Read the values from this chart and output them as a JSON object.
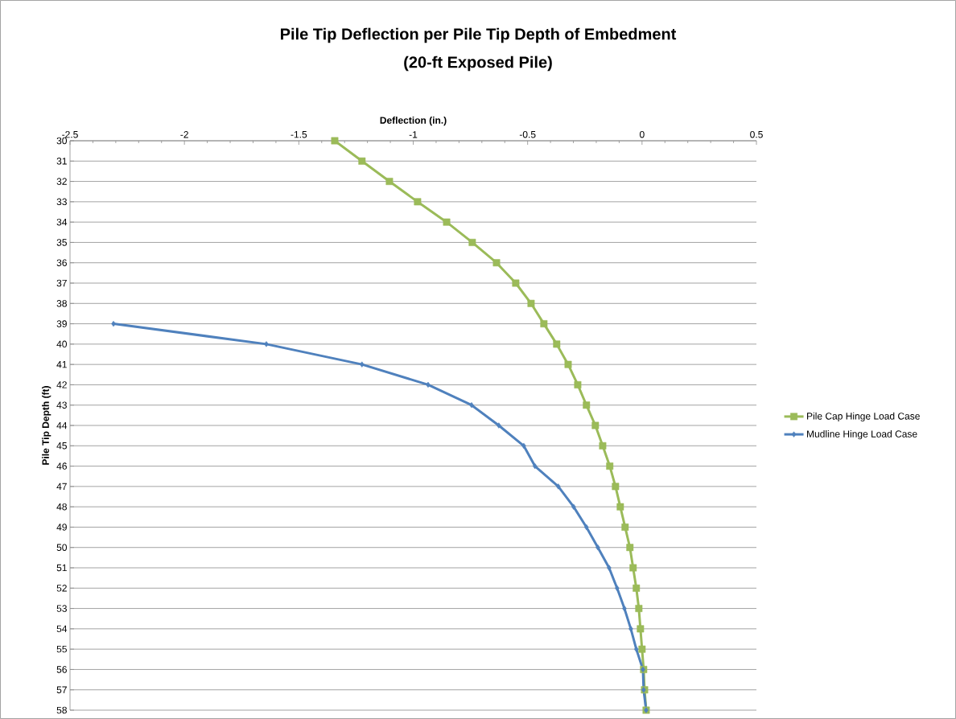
{
  "chart_data": {
    "type": "line",
    "title": "Pile Tip Deflection per Pile Tip Depth of Embedment",
    "subtitle": "(20-ft Exposed Pile)",
    "xlabel": "Deflection (in.)",
    "ylabel": "Pile Tip Depth (ft)",
    "xlim": [
      -2.5,
      0.5
    ],
    "xticks": [
      -2.5,
      -2,
      -1.5,
      -1,
      -0.5,
      0,
      0.5
    ],
    "ylim": [
      58,
      30
    ],
    "yticks": [
      30,
      31,
      32,
      33,
      34,
      35,
      36,
      37,
      38,
      39,
      40,
      41,
      42,
      43,
      44,
      45,
      46,
      47,
      48,
      49,
      50,
      51,
      52,
      53,
      54,
      55,
      56,
      57,
      58
    ],
    "grid": "y",
    "legend": "right",
    "line_style": "solid",
    "series": [
      {
        "name": "Pile Cap Hinge Load Case",
        "color": "#9bbb59",
        "marker": "square",
        "x": [
          -1.343,
          -1.224,
          -1.104,
          -0.981,
          -0.854,
          -0.742,
          -0.636,
          -0.552,
          -0.485,
          -0.429,
          -0.373,
          -0.323,
          -0.281,
          -0.243,
          -0.204,
          -0.172,
          -0.141,
          -0.116,
          -0.095,
          -0.074,
          -0.053,
          -0.039,
          -0.025,
          -0.014,
          -0.007,
          0.0,
          0.007,
          0.011,
          0.018
        ],
        "values": [
          30,
          31,
          32,
          33,
          34,
          35,
          36,
          37,
          38,
          39,
          40,
          41,
          42,
          43,
          44,
          45,
          46,
          47,
          48,
          49,
          50,
          51,
          52,
          53,
          54,
          55,
          56,
          57,
          58
        ]
      },
      {
        "name": "Mudline Hinge Load Case",
        "color": "#4f81bd",
        "marker": "diamond",
        "x": [
          -2.31,
          -1.642,
          -1.224,
          -0.935,
          -0.745,
          -0.626,
          -0.517,
          -0.468,
          -0.366,
          -0.299,
          -0.243,
          -0.193,
          -0.144,
          -0.109,
          -0.077,
          -0.049,
          -0.025,
          0.004,
          0.007,
          0.018
        ],
        "values": [
          39,
          40,
          41,
          42,
          43,
          44,
          45,
          46,
          47,
          48,
          49,
          50,
          51,
          52,
          53,
          54,
          55,
          56,
          57,
          58
        ]
      }
    ]
  }
}
